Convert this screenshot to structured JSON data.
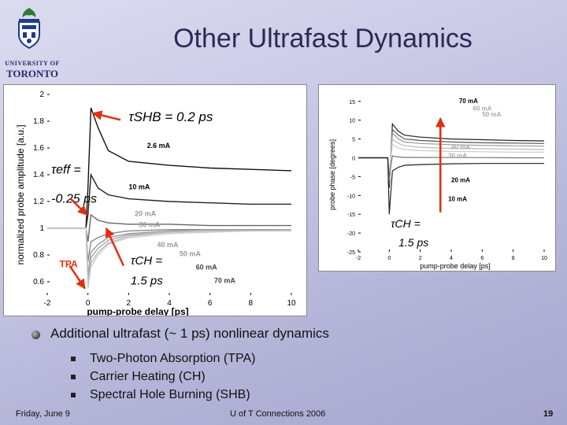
{
  "header": {
    "title": "Other Ultrafast Dynamics",
    "logo_line1": "UNIVERSITY OF",
    "logo_line2": "TORONTO"
  },
  "chart_data": [
    {
      "type": "line",
      "xlabel": "pump-probe delay [ps]",
      "ylabel": "normalized probe amplitude [a.u.]",
      "xlim": [
        -2,
        10
      ],
      "ylim": [
        0.5,
        2.0
      ],
      "xticks": [
        "-2",
        "0",
        "2",
        "4",
        "6",
        "8",
        "10"
      ],
      "yticks": [
        "2",
        "1.8",
        "1.6",
        "1.4",
        "1.2",
        "1",
        "0.8",
        "0.6"
      ],
      "series": [
        {
          "name": "2.6 mA",
          "x": [
            -2,
            -0.1,
            0,
            0.15,
            0.5,
            1,
            2,
            4,
            6,
            8,
            10
          ],
          "y": [
            1.0,
            1.0,
            1.3,
            1.9,
            1.75,
            1.58,
            1.5,
            1.47,
            1.45,
            1.44,
            1.43
          ]
        },
        {
          "name": "10 mA",
          "x": [
            -2,
            -0.1,
            0,
            0.15,
            0.5,
            1,
            2,
            4,
            6,
            8,
            10
          ],
          "y": [
            1.0,
            1.0,
            1.1,
            1.4,
            1.3,
            1.25,
            1.22,
            1.2,
            1.19,
            1.18,
            1.18
          ]
        },
        {
          "name": "20 mA",
          "x": [
            -2,
            -0.1,
            0,
            0.15,
            0.5,
            1,
            2,
            4,
            6,
            8,
            10
          ],
          "y": [
            1.0,
            1.0,
            0.9,
            1.1,
            1.06,
            1.04,
            1.03,
            1.03,
            1.02,
            1.02,
            1.02
          ]
        },
        {
          "name": "30 mA",
          "x": [
            -2,
            -0.1,
            0,
            0.15,
            0.5,
            1,
            2,
            4,
            6,
            8,
            10
          ],
          "y": [
            1.0,
            1.0,
            0.75,
            0.9,
            0.93,
            0.96,
            0.98,
            0.99,
            0.99,
            0.99,
            0.99
          ]
        },
        {
          "name": "40 mA",
          "x": [
            -2,
            -0.1,
            0,
            0.15,
            0.5,
            1,
            2,
            4,
            6,
            8,
            10
          ],
          "y": [
            1.0,
            1.0,
            0.65,
            0.82,
            0.88,
            0.93,
            0.96,
            0.98,
            0.99,
            0.99,
            0.99
          ]
        },
        {
          "name": "50 mA",
          "x": [
            -2,
            -0.1,
            0,
            0.15,
            0.5,
            1,
            2,
            4,
            6,
            8,
            10
          ],
          "y": [
            1.0,
            1.0,
            0.6,
            0.78,
            0.85,
            0.91,
            0.95,
            0.97,
            0.98,
            0.98,
            0.99
          ]
        },
        {
          "name": "60 mA",
          "x": [
            -2,
            -0.1,
            0,
            0.15,
            0.5,
            1,
            2,
            4,
            6,
            8,
            10
          ],
          "y": [
            1.0,
            1.0,
            0.57,
            0.74,
            0.82,
            0.89,
            0.94,
            0.97,
            0.98,
            0.98,
            0.98
          ]
        },
        {
          "name": "70 mA",
          "x": [
            -2,
            -0.1,
            0,
            0.15,
            0.5,
            1,
            2,
            4,
            6,
            8,
            10
          ],
          "y": [
            1.0,
            1.0,
            0.55,
            0.71,
            0.8,
            0.88,
            0.93,
            0.96,
            0.97,
            0.98,
            0.98
          ]
        }
      ],
      "labels": [
        {
          "text": "2.6 mA",
          "x": 2.9,
          "y": 1.6
        },
        {
          "text": "10 mA",
          "x": 2.0,
          "y": 1.29
        },
        {
          "text": "20 mA",
          "x": 2.3,
          "y": 1.09
        },
        {
          "text": "30 mA",
          "x": 2.5,
          "y": 1.01
        },
        {
          "text": "40 mA",
          "x": 3.4,
          "y": 0.86
        },
        {
          "text": "50 mA",
          "x": 4.5,
          "y": 0.79
        },
        {
          "text": "60 mA",
          "x": 5.3,
          "y": 0.69
        },
        {
          "text": "70 mA",
          "x": 6.2,
          "y": 0.59
        }
      ],
      "annotations": [
        {
          "text": "τSHB = 0.2 ps",
          "x": 2.0,
          "y": 1.8
        },
        {
          "text": "τeff =",
          "x": -1.8,
          "y": 1.41
        },
        {
          "text": "-0.25 ps",
          "x": -1.8,
          "y": 1.19
        },
        {
          "text": "τCH =",
          "x": 2.1,
          "y": 0.73
        },
        {
          "text": "1.5 ps",
          "x": 2.1,
          "y": 0.58
        },
        {
          "text": "TPA",
          "x": -1.4,
          "y": 0.71
        }
      ]
    },
    {
      "type": "line",
      "xlabel": "pump-probe delay [ps]",
      "ylabel": "probe phase [degrees]",
      "xlim": [
        -2,
        10
      ],
      "ylim": [
        -25,
        16
      ],
      "xticks": [
        "-2",
        "0",
        "2",
        "4",
        "6",
        "8",
        "10"
      ],
      "yticks": [
        "15",
        "10",
        "5",
        "0",
        "-5",
        "-10",
        "-15",
        "-20",
        "-25"
      ],
      "series": [
        {
          "name": "70 mA",
          "x": [
            -2,
            -0.1,
            0,
            0.2,
            0.6,
            1,
            2,
            4,
            6,
            8,
            10
          ],
          "y": [
            0,
            0,
            -8,
            9,
            7,
            6,
            5.5,
            5,
            4.8,
            4.6,
            4.5
          ]
        },
        {
          "name": "60 mA",
          "x": [
            -2,
            -0.1,
            0,
            0.2,
            0.6,
            1,
            2,
            4,
            6,
            8,
            10
          ],
          "y": [
            0,
            0,
            -7,
            7.5,
            6,
            5,
            4.6,
            4.2,
            4,
            3.9,
            3.8
          ]
        },
        {
          "name": "50 mA",
          "x": [
            -2,
            -0.1,
            0,
            0.2,
            0.6,
            1,
            2,
            4,
            6,
            8,
            10
          ],
          "y": [
            0,
            0,
            -6,
            6.5,
            5,
            4.2,
            3.8,
            3.5,
            3.3,
            3.2,
            3.1
          ]
        },
        {
          "name": "40 mA",
          "x": [
            -2,
            -0.1,
            0,
            0.2,
            0.6,
            1,
            2,
            4,
            6,
            8,
            10
          ],
          "y": [
            0,
            0,
            -5,
            5,
            3.8,
            3.2,
            2.8,
            2.5,
            2.4,
            2.3,
            2.2
          ]
        },
        {
          "name": "30 mA",
          "x": [
            -2,
            -0.1,
            0,
            0.2,
            0.6,
            1,
            2,
            4,
            6,
            8,
            10
          ],
          "y": [
            0,
            0,
            -4,
            3.5,
            2.6,
            2.2,
            1.9,
            1.7,
            1.6,
            1.5,
            1.5
          ]
        },
        {
          "name": "20 mA",
          "x": [
            -2,
            -0.1,
            0,
            0.2,
            0.6,
            1,
            2,
            4,
            6,
            8,
            10
          ],
          "y": [
            0,
            0,
            -5,
            0.5,
            0.2,
            0.1,
            0.1,
            0.05,
            0.05,
            0,
            0
          ]
        },
        {
          "name": "10 mA",
          "x": [
            -2,
            -0.1,
            0,
            0.2,
            0.6,
            1,
            2,
            4,
            6,
            8,
            10
          ],
          "y": [
            0,
            0,
            -15,
            -3.5,
            -2.5,
            -2,
            -1.8,
            -1.6,
            -1.5,
            -1.5,
            -1.5
          ]
        }
      ],
      "labels": [
        {
          "text": "70 mA",
          "x": 4.5,
          "y": 14.5
        },
        {
          "text": "60 mA",
          "x": 5.4,
          "y": 12.5
        },
        {
          "text": "50 mA",
          "x": 6.0,
          "y": 11.0
        },
        {
          "text": "40 mA",
          "x": 4.0,
          "y": 2.3
        },
        {
          "text": "30 mA",
          "x": 3.8,
          "y": 0.0
        },
        {
          "text": "20 mA",
          "x": 4.0,
          "y": -6.5
        },
        {
          "text": "10 mA",
          "x": 3.8,
          "y": -11.5
        }
      ],
      "annotations": [
        {
          "text": "τCH =",
          "x": 0.1,
          "y": -18.5
        },
        {
          "text": "1.5 ps",
          "x": 0.6,
          "y": -23.5
        }
      ]
    }
  ],
  "bullets": {
    "main": "Additional ultrafast (~ 1 ps) nonlinear dynamics",
    "subs": [
      "Two-Photon Absorption (TPA)",
      "Carrier Heating (CH)",
      "Spectral Hole Burning (SHB)"
    ]
  },
  "footer": {
    "date": "Friday, June 9",
    "center": "U of T Connections 2006",
    "page": "19"
  },
  "colors": {
    "title": "#2a2a55",
    "arrow": "#e03010"
  }
}
